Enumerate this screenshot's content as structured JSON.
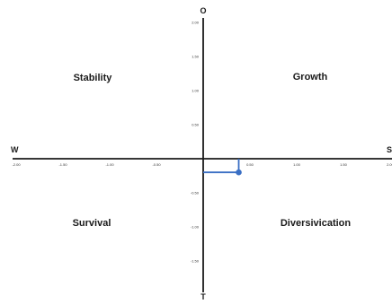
{
  "axes": {
    "top_label": "O",
    "bottom_label": "T",
    "left_label": "W",
    "right_label": "S"
  },
  "quadrants": {
    "top_left": "Stability",
    "top_right": "Growth",
    "bottom_left": "Survival",
    "bottom_right": "Diversivication"
  },
  "colors": {
    "axis": "#1a1a1a",
    "point": "#3a6fc4"
  },
  "chart_data": {
    "type": "scatter",
    "xlim": [
      -2.0,
      2.0
    ],
    "ylim": [
      -2.0,
      2.0
    ],
    "x_ticks": [
      "-2.00",
      "-1.50",
      "-1.00",
      "-0.50",
      "0.50",
      "1.00",
      "1.50",
      "2.00"
    ],
    "y_ticks": [
      "2.00",
      "1.50",
      "1.00",
      "0.50",
      "-0.50",
      "-1.00",
      "-1.50"
    ],
    "series": [
      {
        "x": [
          0.38
        ],
        "y": [
          -0.2
        ]
      }
    ]
  }
}
